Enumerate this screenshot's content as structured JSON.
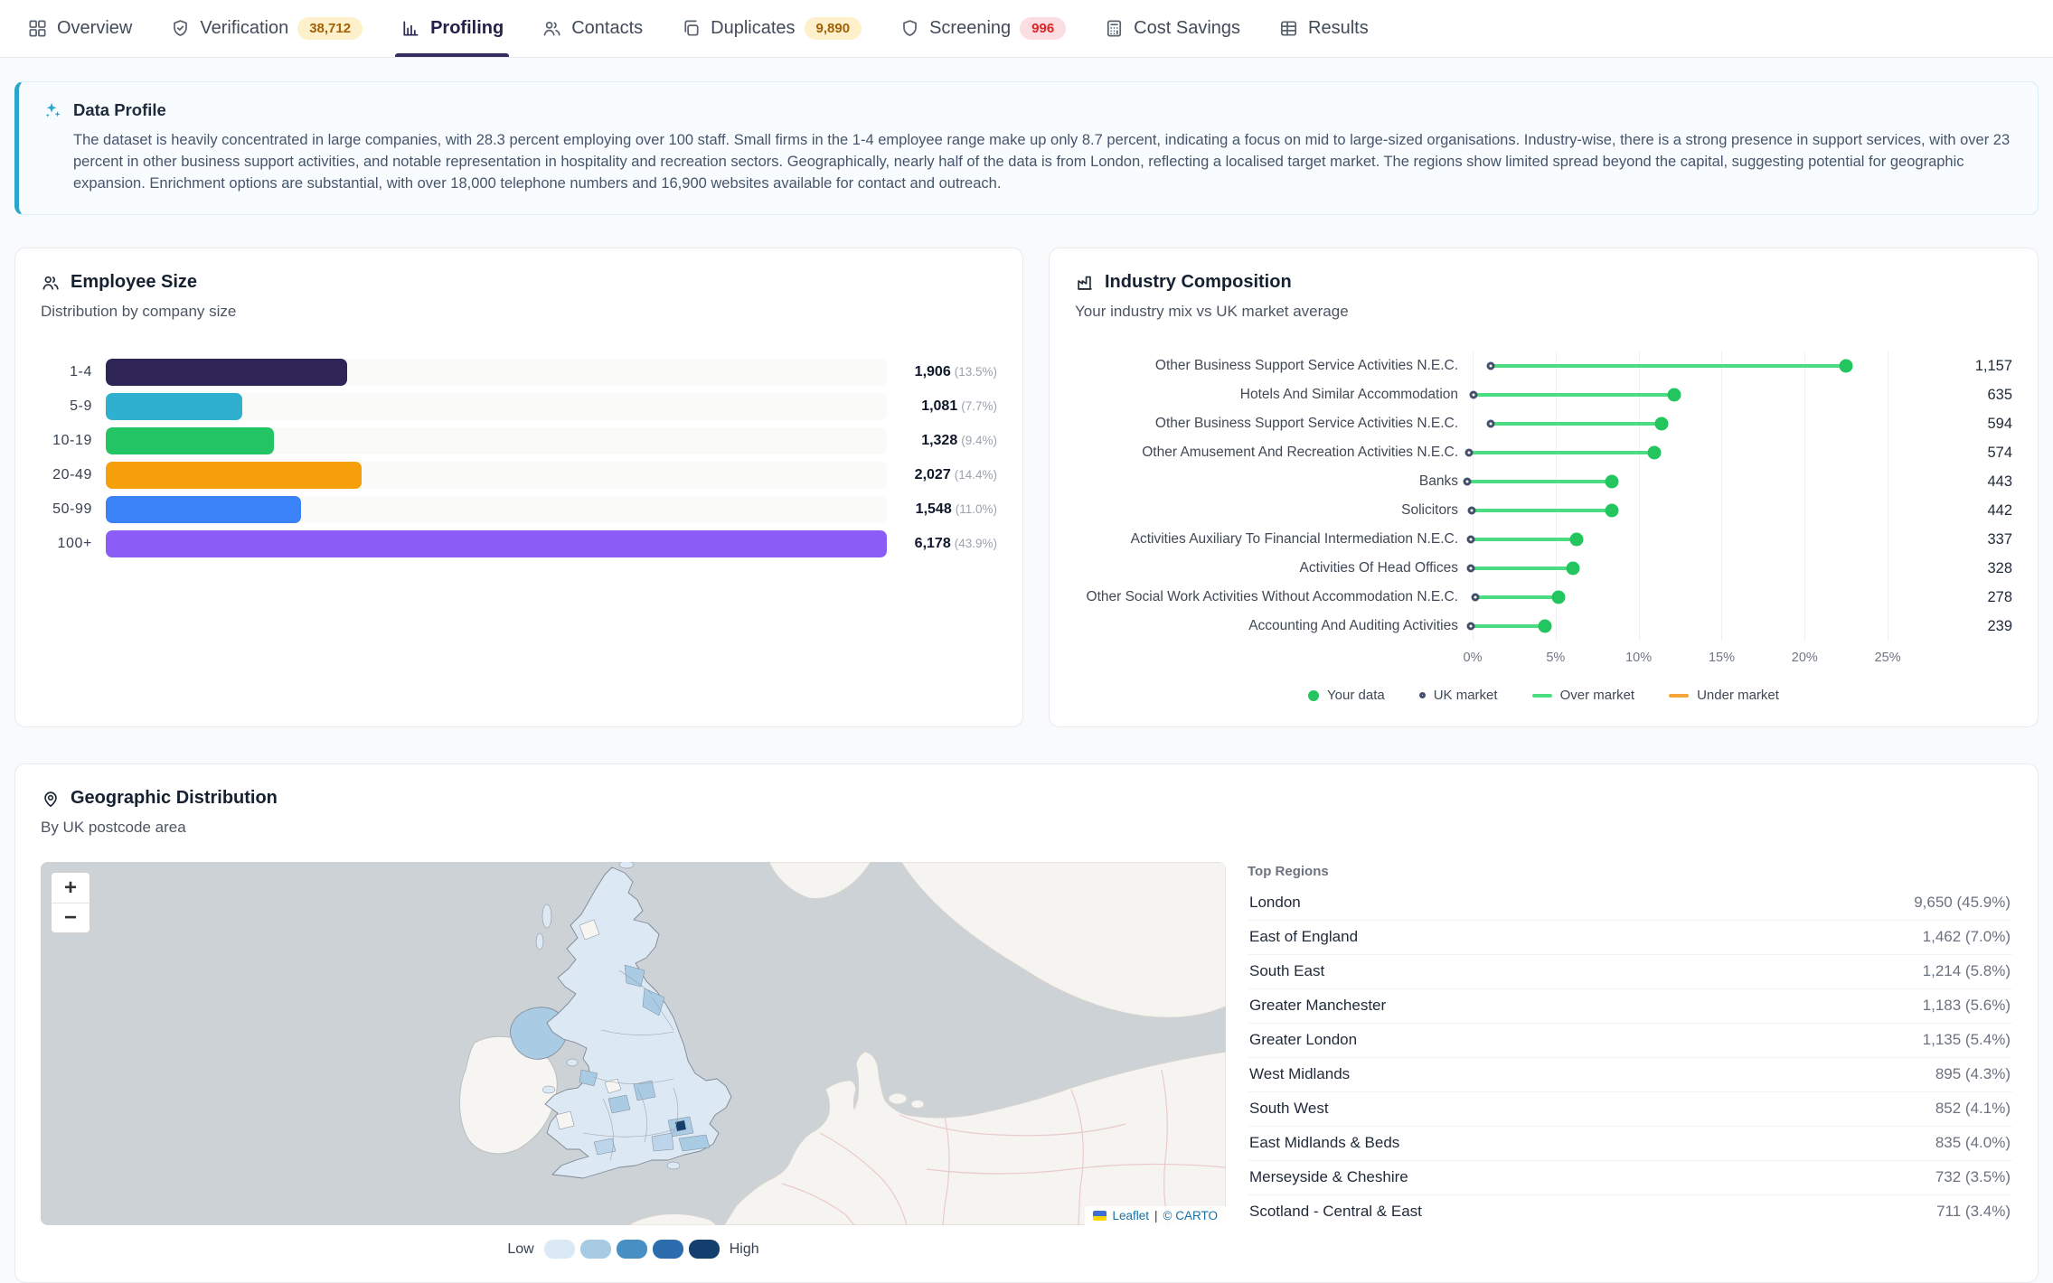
{
  "nav": {
    "tabs": [
      {
        "label": "Overview",
        "icon": "grid-icon"
      },
      {
        "label": "Verification",
        "icon": "shield-check-icon",
        "badge": "38,712",
        "badge_type": "amber"
      },
      {
        "label": "Profiling",
        "icon": "bar-chart-icon",
        "active": true
      },
      {
        "label": "Contacts",
        "icon": "users-icon"
      },
      {
        "label": "Duplicates",
        "icon": "copy-icon",
        "badge": "9,890",
        "badge_type": "amber"
      },
      {
        "label": "Screening",
        "icon": "shield-icon",
        "badge": "996",
        "badge_type": "red"
      },
      {
        "label": "Cost Savings",
        "icon": "calculator-icon"
      },
      {
        "label": "Results",
        "icon": "table-icon"
      }
    ]
  },
  "banner": {
    "icon": "sparkles-icon",
    "title": "Data Profile",
    "body": "The dataset is heavily concentrated in large companies, with 28.3 percent employing over 100 staff. Small firms in the 1-4 employee range make up only 8.7 percent, indicating a focus on mid to large-sized organisations. Industry-wise, there is a strong presence in support services, with over 23 percent in other business support activities, and notable representation in hospitality and recreation sectors. Geographically, nearly half of the data is from London, reflecting a localised target market. The regions show limited spread beyond the capital, suggesting potential for geographic expansion. Enrichment options are substantial, with over 18,000 telephone numbers and 16,900 websites available for contact and outreach."
  },
  "employee_size": {
    "icon": "people-icon",
    "title": "Employee Size",
    "subtitle": "Distribution by company size",
    "rows": [
      {
        "label": "1-4",
        "value": "1,906",
        "pct": "(13.5%)",
        "num": 1906,
        "color": "#2f2554"
      },
      {
        "label": "5-9",
        "value": "1,081",
        "pct": "(7.7%)",
        "num": 1081,
        "color": "#2eb0ce"
      },
      {
        "label": "10-19",
        "value": "1,328",
        "pct": "(9.4%)",
        "num": 1328,
        "color": "#23c464"
      },
      {
        "label": "20-49",
        "value": "2,027",
        "pct": "(14.4%)",
        "num": 2027,
        "color": "#f59f0a"
      },
      {
        "label": "50-99",
        "value": "1,548",
        "pct": "(11.0%)",
        "num": 1548,
        "color": "#3b82f6"
      },
      {
        "label": "100+",
        "value": "6,178",
        "pct": "(43.9%)",
        "num": 6178,
        "color": "#8b5cf6"
      }
    ]
  },
  "industry": {
    "icon": "factory-icon",
    "title": "Industry Composition",
    "subtitle": "Your industry mix vs UK market average",
    "x_max": 27.5,
    "rows": [
      {
        "label": "Other Business Support Service Activities N.E.C.",
        "value": "1,157",
        "your_pct": 22.9,
        "uk_pct": 1.5
      },
      {
        "label": "Hotels And Similar Accommodation",
        "value": "635",
        "your_pct": 12.6,
        "uk_pct": 0.5
      },
      {
        "label": "Other Business Support Service Activities N.E.C.",
        "value": "594",
        "your_pct": 11.8,
        "uk_pct": 1.5
      },
      {
        "label": "Other Amusement And Recreation Activities N.E.C.",
        "value": "574",
        "your_pct": 11.4,
        "uk_pct": 0.2
      },
      {
        "label": "Banks",
        "value": "443",
        "your_pct": 8.8,
        "uk_pct": 0.1
      },
      {
        "label": "Solicitors",
        "value": "442",
        "your_pct": 8.8,
        "uk_pct": 0.4
      },
      {
        "label": "Activities Auxiliary To Financial Intermediation N.E.C.",
        "value": "337",
        "your_pct": 6.7,
        "uk_pct": 0.3
      },
      {
        "label": "Activities Of Head Offices",
        "value": "328",
        "your_pct": 6.5,
        "uk_pct": 0.3
      },
      {
        "label": "Other Social Work Activities Without Accommodation N.E.C.",
        "value": "278",
        "your_pct": 5.6,
        "uk_pct": 0.6
      },
      {
        "label": "Accounting And Auditing Activities",
        "value": "239",
        "your_pct": 4.8,
        "uk_pct": 0.3
      }
    ],
    "axis_ticks": [
      {
        "label": "0%",
        "v": 0
      },
      {
        "label": "5%",
        "v": 5
      },
      {
        "label": "10%",
        "v": 10
      },
      {
        "label": "15%",
        "v": 15
      },
      {
        "label": "20%",
        "v": 20
      },
      {
        "label": "25%",
        "v": 25
      }
    ],
    "legend": [
      {
        "label": "Your data"
      },
      {
        "label": "UK market"
      },
      {
        "label": "Over market"
      },
      {
        "label": "Under market"
      }
    ]
  },
  "geo": {
    "icon": "map-pin-icon",
    "title": "Geographic Distribution",
    "subtitle": "By UK postcode area",
    "map": {
      "zoom_in": "+",
      "zoom_out": "−",
      "attribution_leaflet": "Leaflet",
      "attribution_sep": "|",
      "attribution_carto": "© CARTO"
    },
    "legend": {
      "low": "Low",
      "high": "High",
      "colors": [
        "#dbe9f6",
        "#a6cbe3",
        "#4690c4",
        "#2b6dad",
        "#123f6d"
      ]
    },
    "top_regions": {
      "header": "Top Regions",
      "rows": [
        {
          "name": "London",
          "value": "9,650 (45.9%)"
        },
        {
          "name": "East of England",
          "value": "1,462 (7.0%)"
        },
        {
          "name": "South East",
          "value": "1,214 (5.8%)"
        },
        {
          "name": "Greater Manchester",
          "value": "1,183 (5.6%)"
        },
        {
          "name": "Greater London",
          "value": "1,135 (5.4%)"
        },
        {
          "name": "West Midlands",
          "value": "895 (4.3%)"
        },
        {
          "name": "South West",
          "value": "852 (4.1%)"
        },
        {
          "name": "East Midlands & Beds",
          "value": "835 (4.0%)"
        },
        {
          "name": "Merseyside & Cheshire",
          "value": "732 (3.5%)"
        },
        {
          "name": "Scotland - Central & East",
          "value": "711 (3.4%)"
        }
      ]
    }
  },
  "chart_data": [
    {
      "type": "bar",
      "title": "Employee Size",
      "subtitle": "Distribution by company size",
      "orientation": "horizontal",
      "categories": [
        "1-4",
        "5-9",
        "10-19",
        "20-49",
        "50-99",
        "100+"
      ],
      "values": [
        1906,
        1081,
        1328,
        2027,
        1548,
        6178
      ],
      "percent_labels": [
        "13.5%",
        "7.7%",
        "9.4%",
        "14.4%",
        "11.0%",
        "43.9%"
      ],
      "bar_colors": [
        "#2f2554",
        "#2eb0ce",
        "#23c464",
        "#f59f0a",
        "#3b82f6",
        "#8b5cf6"
      ],
      "xlim": [
        0,
        6178
      ]
    },
    {
      "type": "scatter",
      "subtype": "dumbbell-lollipop",
      "title": "Industry Composition",
      "subtitle": "Your industry mix vs UK market average",
      "categories": [
        "Other Business Support Service Activities N.E.C.",
        "Hotels And Similar Accommodation",
        "Other Business Support Service Activities N.E.C.",
        "Other Amusement And Recreation Activities N.E.C.",
        "Banks",
        "Solicitors",
        "Activities Auxiliary To Financial Intermediation N.E.C.",
        "Activities Of Head Offices",
        "Other Social Work Activities Without Accommodation N.E.C.",
        "Accounting And Auditing Activities"
      ],
      "series": [
        {
          "name": "Your data (count)",
          "values": [
            1157,
            635,
            594,
            574,
            443,
            442,
            337,
            328,
            278,
            239
          ]
        },
        {
          "name": "Your data (% of mix)",
          "values": [
            22.9,
            12.6,
            11.8,
            11.4,
            8.8,
            8.8,
            6.7,
            6.5,
            5.6,
            4.8
          ]
        },
        {
          "name": "UK market (% of mix)",
          "values": [
            1.5,
            0.5,
            1.5,
            0.2,
            0.1,
            0.4,
            0.3,
            0.3,
            0.6,
            0.3
          ]
        }
      ],
      "xlabel_ticks": [
        "0%",
        "5%",
        "10%",
        "15%",
        "20%",
        "25%"
      ],
      "xlim": [
        0,
        27.5
      ],
      "grid": true,
      "legend_position": "bottom",
      "legend": [
        "Your data",
        "UK market",
        "Over market",
        "Under market"
      ]
    },
    {
      "type": "table",
      "title": "Top Regions",
      "rows": [
        [
          "London",
          "9,650 (45.9%)"
        ],
        [
          "East of England",
          "1,462 (7.0%)"
        ],
        [
          "South East",
          "1,214 (5.8%)"
        ],
        [
          "Greater Manchester",
          "1,183 (5.6%)"
        ],
        [
          "Greater London",
          "1,135 (5.4%)"
        ],
        [
          "West Midlands",
          "895 (4.3%)"
        ],
        [
          "South West",
          "852 (4.1%)"
        ],
        [
          "East Midlands & Beds",
          "835 (4.0%)"
        ],
        [
          "Merseyside & Cheshire",
          "732 (3.5%)"
        ],
        [
          "Scotland - Central & East",
          "711 (3.4%)"
        ]
      ]
    }
  ]
}
